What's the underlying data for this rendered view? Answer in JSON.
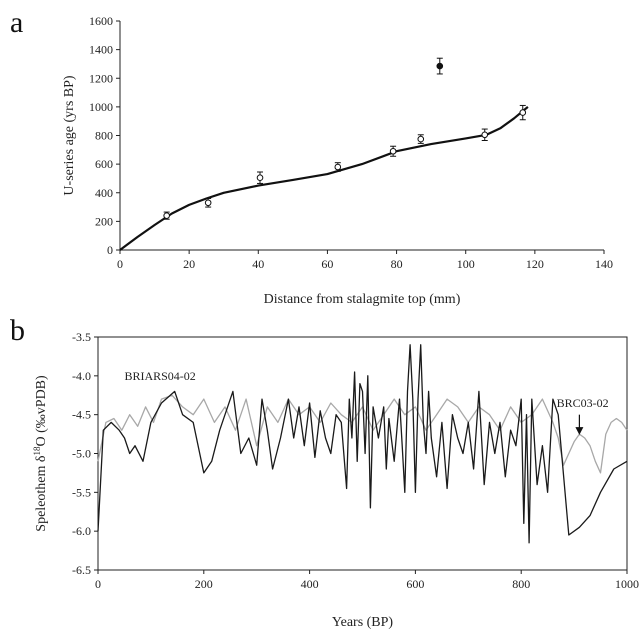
{
  "chart_data": [
    {
      "panel": "a",
      "type": "scatter",
      "xlabel": "Distance from stalagmite top (mm)",
      "ylabel": "U-series age (yrs BP)",
      "xlim": [
        0,
        140
      ],
      "ylim": [
        0,
        1600
      ],
      "xticks": [
        0,
        20,
        40,
        60,
        80,
        100,
        120,
        140
      ],
      "yticks": [
        0,
        200,
        400,
        600,
        800,
        1000,
        1200,
        1400,
        1600
      ],
      "grid": false,
      "points": [
        {
          "x": 13.5,
          "y": 240,
          "err": 25,
          "filled": false
        },
        {
          "x": 25.5,
          "y": 330,
          "err": 30,
          "filled": false
        },
        {
          "x": 40.5,
          "y": 505,
          "err": 40,
          "filled": false
        },
        {
          "x": 63,
          "y": 580,
          "err": 30,
          "filled": false
        },
        {
          "x": 79,
          "y": 690,
          "err": 35,
          "filled": false
        },
        {
          "x": 87,
          "y": 775,
          "err": 30,
          "filled": false
        },
        {
          "x": 92.5,
          "y": 1285,
          "err": 55,
          "filled": true
        },
        {
          "x": 105.5,
          "y": 805,
          "err": 40,
          "filled": false
        },
        {
          "x": 116.5,
          "y": 960,
          "err": 50,
          "filled": false
        }
      ],
      "fit_curve": {
        "x": [
          0,
          5,
          10,
          15,
          20,
          25,
          30,
          40,
          50,
          60,
          70,
          80,
          90,
          100,
          106,
          110,
          114,
          118
        ],
        "y": [
          0,
          90,
          175,
          255,
          315,
          360,
          400,
          450,
          490,
          530,
          600,
          690,
          740,
          780,
          805,
          850,
          920,
          1000
        ]
      }
    },
    {
      "panel": "b",
      "type": "line",
      "xlabel": "Years (BP)",
      "ylabel": "Speleothem δ18O (‰vPDB)",
      "xlim": [
        0,
        1000
      ],
      "ylim": [
        -6.5,
        -3.5
      ],
      "xticks": [
        0,
        200,
        400,
        600,
        800,
        1000
      ],
      "yticks": [
        -6.5,
        -6.0,
        -5.5,
        -5.0,
        -4.5,
        -4.0,
        -3.5
      ],
      "grid": false,
      "annotations": [
        {
          "text": "BRIARS04-02"
        },
        {
          "text": "BRC03-02"
        }
      ],
      "series": [
        {
          "name": "BRIARS04-02",
          "color": "#1a1a1a",
          "x": [
            0,
            10,
            25,
            40,
            50,
            60,
            70,
            85,
            100,
            120,
            145,
            160,
            180,
            200,
            215,
            230,
            255,
            270,
            285,
            300,
            310,
            320,
            330,
            345,
            360,
            370,
            380,
            390,
            400,
            410,
            420,
            430,
            440,
            450,
            460,
            470,
            475,
            480,
            485,
            490,
            495,
            500,
            505,
            510,
            515,
            520,
            530,
            540,
            545,
            550,
            560,
            570,
            575,
            580,
            585,
            590,
            595,
            600,
            605,
            610,
            615,
            620,
            625,
            630,
            640,
            650,
            660,
            670,
            680,
            690,
            700,
            710,
            720,
            730,
            740,
            750,
            760,
            770,
            780,
            790,
            800,
            805,
            810,
            815,
            820,
            830,
            840,
            850,
            860,
            870,
            890,
            910,
            930,
            950,
            975,
            1000
          ],
          "y": [
            -6.0,
            -4.7,
            -4.6,
            -4.7,
            -4.8,
            -5.0,
            -4.9,
            -5.1,
            -4.6,
            -4.35,
            -4.2,
            -4.5,
            -4.6,
            -5.25,
            -5.1,
            -4.7,
            -4.2,
            -5.0,
            -4.8,
            -5.15,
            -4.3,
            -4.7,
            -5.2,
            -4.8,
            -4.3,
            -4.8,
            -4.4,
            -4.9,
            -4.35,
            -5.05,
            -4.45,
            -4.8,
            -5.0,
            -4.5,
            -4.6,
            -5.45,
            -4.3,
            -4.8,
            -3.95,
            -5.1,
            -4.1,
            -4.2,
            -5.0,
            -4.0,
            -5.7,
            -4.4,
            -4.8,
            -4.4,
            -5.2,
            -4.55,
            -5.1,
            -4.3,
            -4.9,
            -5.5,
            -4.2,
            -3.6,
            -4.3,
            -5.5,
            -4.3,
            -3.6,
            -4.6,
            -5.0,
            -4.2,
            -4.8,
            -5.3,
            -4.6,
            -5.45,
            -4.5,
            -4.8,
            -5.0,
            -4.6,
            -5.2,
            -4.2,
            -5.4,
            -4.6,
            -5.0,
            -4.6,
            -5.3,
            -4.7,
            -4.9,
            -4.3,
            -5.9,
            -4.5,
            -6.15,
            -4.3,
            -5.4,
            -4.9,
            -5.5,
            -4.3,
            -4.5,
            -6.05,
            -5.95,
            -5.8,
            -5.5,
            -5.2,
            -5.1
          ]
        },
        {
          "name": "BRC03-02",
          "color": "#a8a8a8",
          "x": [
            0,
            15,
            30,
            45,
            60,
            75,
            90,
            105,
            120,
            140,
            160,
            180,
            200,
            220,
            240,
            260,
            280,
            300,
            320,
            340,
            360,
            380,
            400,
            420,
            440,
            460,
            480,
            500,
            520,
            540,
            560,
            580,
            600,
            620,
            640,
            660,
            680,
            700,
            720,
            740,
            760,
            780,
            800,
            820,
            840,
            860,
            870,
            880,
            890,
            900,
            910,
            920,
            930,
            940,
            950,
            960,
            970,
            980,
            990,
            1000
          ],
          "y": [
            -5.1,
            -4.6,
            -4.55,
            -4.7,
            -4.5,
            -4.65,
            -4.4,
            -4.6,
            -4.3,
            -4.25,
            -4.4,
            -4.5,
            -4.3,
            -4.6,
            -4.4,
            -4.7,
            -4.3,
            -4.9,
            -4.4,
            -4.6,
            -4.3,
            -4.5,
            -4.4,
            -4.6,
            -4.35,
            -4.5,
            -4.6,
            -4.4,
            -4.7,
            -4.5,
            -4.3,
            -4.5,
            -4.4,
            -4.7,
            -4.5,
            -4.3,
            -4.4,
            -4.6,
            -4.4,
            -4.5,
            -4.7,
            -4.4,
            -4.6,
            -4.5,
            -4.3,
            -4.6,
            -4.8,
            -5.15,
            -5.0,
            -4.85,
            -4.75,
            -4.8,
            -4.9,
            -5.1,
            -5.25,
            -4.75,
            -4.6,
            -4.55,
            -4.6,
            -4.7
          ]
        }
      ]
    }
  ],
  "panel_labels": [
    "a",
    "b"
  ]
}
